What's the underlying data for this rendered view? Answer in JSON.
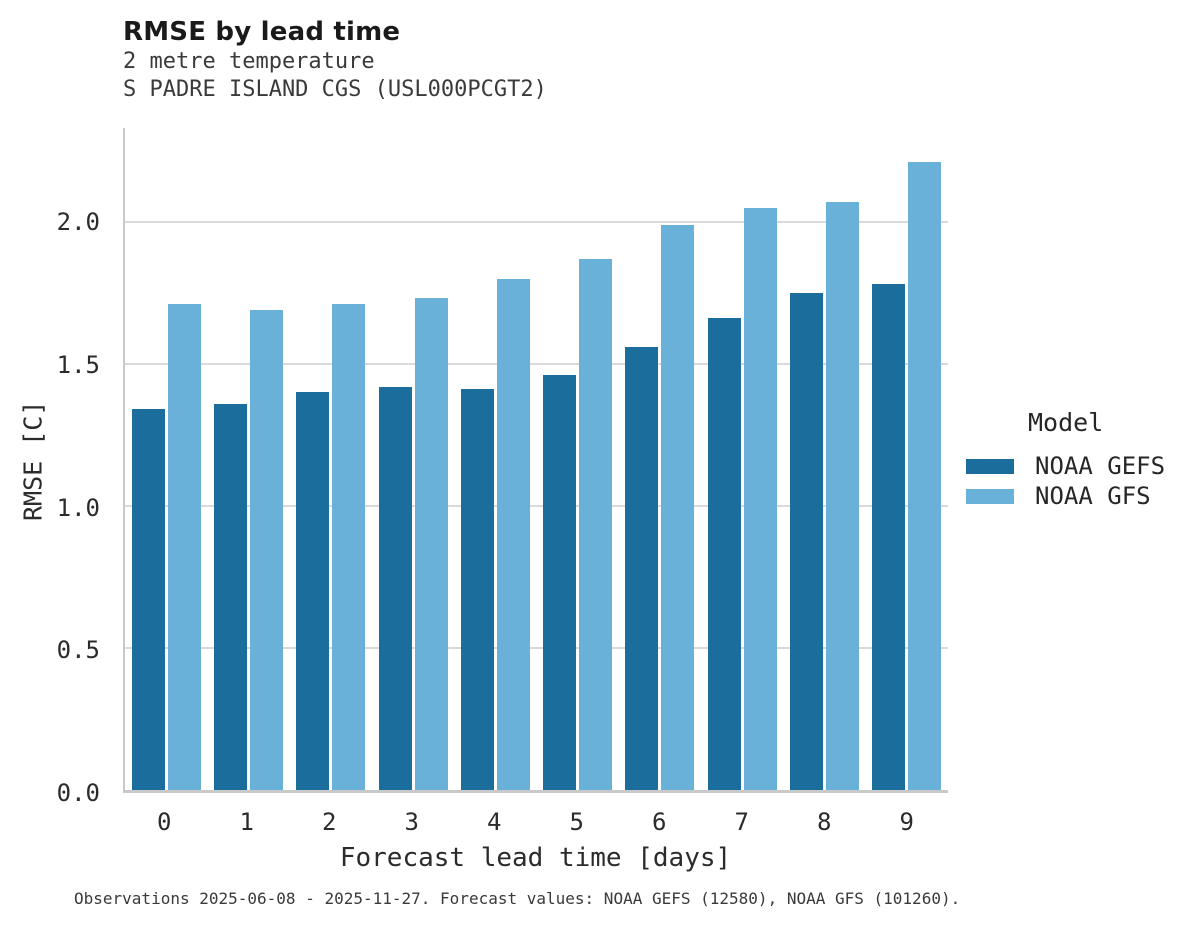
{
  "footer": {
    "note": "Observations 2025-06-08 - 2025-11-27. Forecast values: NOAA GEFS (12580), NOAA GFS (101260)."
  },
  "chart_data": {
    "type": "bar",
    "title": "RMSE by lead time",
    "subtitle": "2 metre temperature",
    "station": "S PADRE ISLAND CGS (USL000PCGT2)",
    "categories": [
      "0",
      "1",
      "2",
      "3",
      "4",
      "5",
      "6",
      "7",
      "8",
      "9"
    ],
    "series": [
      {
        "name": "NOAA GEFS",
        "color": "#1b6d9b",
        "values": [
          1.34,
          1.36,
          1.4,
          1.42,
          1.41,
          1.46,
          1.56,
          1.66,
          1.75,
          1.78
        ]
      },
      {
        "name": "NOAA GFS",
        "color": "#69b1d8",
        "values": [
          1.71,
          1.69,
          1.71,
          1.73,
          1.8,
          1.87,
          1.99,
          2.05,
          2.07,
          2.21
        ]
      }
    ],
    "xlabel": "Forecast lead time [days]",
    "ylabel": "RMSE [C]",
    "ylim": [
      0,
      2.33
    ],
    "yticks": [
      "0.0",
      "0.5",
      "1.0",
      "1.5",
      "2.0"
    ],
    "grid": true,
    "legend": {
      "title": "Model",
      "position": "right"
    },
    "colors": {
      "gridline": "#d9d9d9",
      "spine": "#c9c9c9",
      "background": "#ffffff"
    }
  }
}
